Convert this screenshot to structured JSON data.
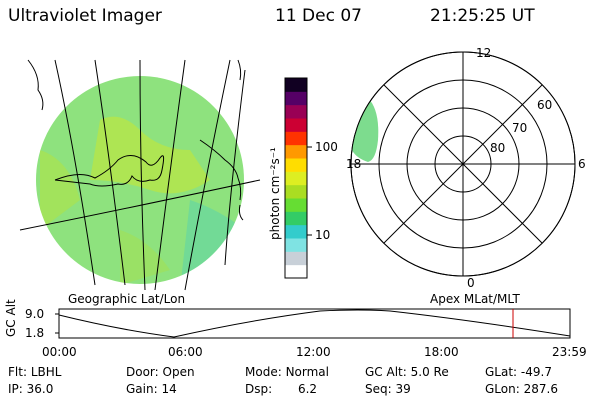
{
  "header": {
    "title": "Ultraviolet Imager",
    "date": "11 Dec 07",
    "time": "21:25:25 UT"
  },
  "colorbar": {
    "unit_label": "photon cm⁻²s⁻¹",
    "ticks": [
      "100",
      "10"
    ],
    "colors": [
      "#ffffff",
      "#c8d0d8",
      "#7fe3e3",
      "#33cccc",
      "#33cc66",
      "#66dd33",
      "#aadd22",
      "#ddee22",
      "#ffdd00",
      "#ff9900",
      "#ff3300",
      "#cc0033",
      "#990055",
      "#550066",
      "#110022"
    ]
  },
  "geo_panel": {
    "label": "Geographic Lat/Lon",
    "fill_color": "#8ee27e"
  },
  "polar_panel": {
    "label": "Apex MLat/MLT",
    "lat_labels": [
      "60",
      "70",
      "80"
    ],
    "mlt_labels": {
      "top": "12",
      "left": "18",
      "right": "6",
      "bottom": "0"
    },
    "fill_color": "#7ddc8e"
  },
  "orbit_plot": {
    "ylabel": "GC Alt",
    "yticks": [
      "9.0",
      "1.8"
    ],
    "xticks": [
      "00:00",
      "06:00",
      "12:00",
      "18:00",
      "23:59"
    ],
    "marker_color": "#cc0000"
  },
  "info": {
    "row1": [
      {
        "label": "Flt:",
        "value": "LBHL"
      },
      {
        "label": "Door:",
        "value": "Open"
      },
      {
        "label": "Mode:",
        "value": "Normal"
      },
      {
        "label": "GC Alt:",
        "value": "5.0 Re"
      },
      {
        "label": "GLat:",
        "value": "-49.7"
      }
    ],
    "row2": [
      {
        "label": "IP:",
        "value": "36.0"
      },
      {
        "label": "Gain:",
        "value": "14"
      },
      {
        "label": "Dsp:",
        "value": "6.2"
      },
      {
        "label": "Seq:",
        "value": "39"
      },
      {
        "label": "GLon:",
        "value": "287.6"
      }
    ]
  }
}
